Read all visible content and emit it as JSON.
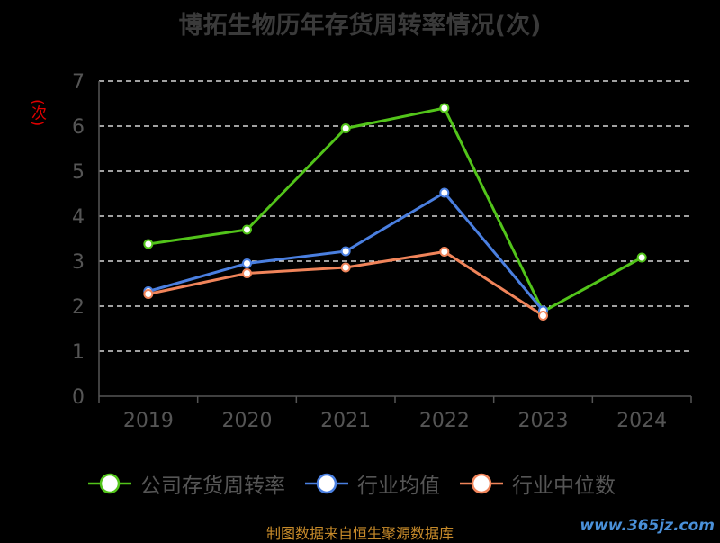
{
  "title": "博拓生物历年存货周转率情况(次)",
  "chart_data": {
    "type": "line",
    "title": "博拓生物历年存货周转率情况(次)",
    "ylabel": "(次)",
    "xlabel": "",
    "categories": [
      "2019",
      "2020",
      "2021",
      "2022",
      "2023",
      "2024"
    ],
    "ylim": [
      0,
      7
    ],
    "yticks": [
      0,
      1,
      2,
      3,
      4,
      5,
      6,
      7
    ],
    "grid": true,
    "legend_position": "bottom",
    "series": [
      {
        "name": "公司存货周转率",
        "color": "#52c41a",
        "values": [
          3.38,
          3.7,
          5.95,
          6.4,
          1.88,
          3.08
        ]
      },
      {
        "name": "行业均值",
        "color": "#4a7fe0",
        "values": [
          2.33,
          2.95,
          3.22,
          4.52,
          1.9,
          null
        ]
      },
      {
        "name": "行业中位数",
        "color": "#f0845a",
        "values": [
          2.27,
          2.73,
          2.86,
          3.21,
          1.79,
          null
        ]
      }
    ]
  },
  "source": "制图数据来自恒生聚源数据库",
  "watermark": "www.365jz.com"
}
